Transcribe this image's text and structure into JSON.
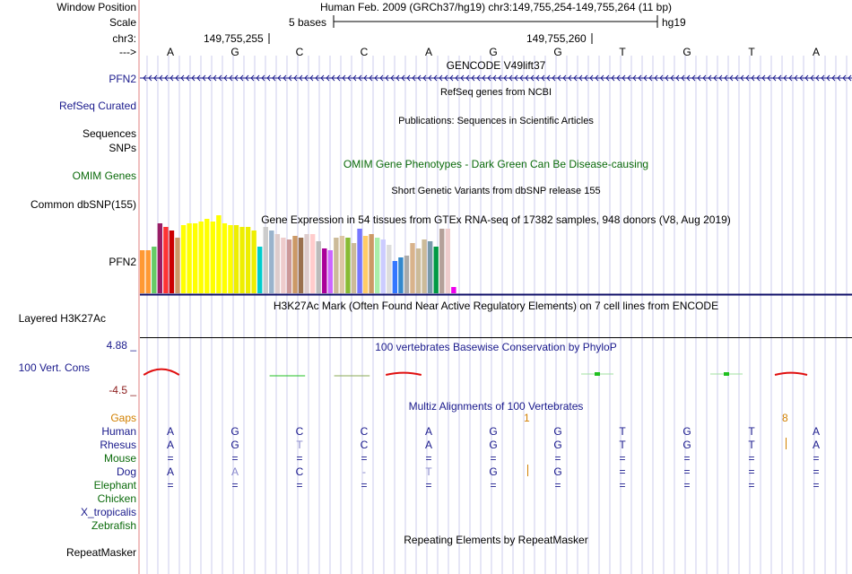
{
  "header": {
    "window_position_label": "Window Position",
    "scale_label": "Scale",
    "chrom_label": "chr3:",
    "strand_label": "--->",
    "position_text": "Human Feb. 2009 (GRCh37/hg19)   chr3:149,755,254-149,755,264 (11 bp)",
    "scale_text": "5 bases",
    "assembly": "hg19",
    "coord_1": "149,755,255",
    "coord_2": "149,755,260"
  },
  "bases": [
    "A",
    "G",
    "C",
    "C",
    "A",
    "G",
    "G",
    "T",
    "G",
    "T",
    "A"
  ],
  "tracks": {
    "gencode": {
      "title": "GENCODE V49lift37",
      "gene_label": "PFN2"
    },
    "refseq": {
      "title": "RefSeq genes from NCBI",
      "label": "RefSeq Curated"
    },
    "publications": {
      "title": "Publications: Sequences in Scientific Articles",
      "label_1": "Sequences",
      "label_2": "SNPs"
    },
    "omim": {
      "title": "OMIM Gene Phenotypes - Dark Green Can Be Disease-causing",
      "label": "OMIM Genes"
    },
    "dbsnp": {
      "title": "Short Genetic Variants from dbSNP release 155",
      "label": "Common dbSNP(155)"
    },
    "gtex": {
      "title": "Gene Expression in 54 tissues from GTEx RNA-seq of 17382 samples, 948 donors (V8, Aug 2019)",
      "label": "PFN2"
    },
    "h3k27ac": {
      "title": "H3K27Ac Mark (Often Found Near Active Regulatory Elements) on 7 cell lines from ENCODE",
      "label": "Layered H3K27Ac"
    },
    "phylop": {
      "title": "100 vertebrates Basewise Conservation by PhyloP",
      "label": "100 Vert. Cons",
      "max": "4.88 _",
      "min": "-4.5 _"
    },
    "multiz": {
      "title": "Multiz Alignments of 100 Vertebrates",
      "gaps_label": "Gaps",
      "gap_1": "1",
      "gap_2": "8",
      "species": [
        {
          "name": "Human",
          "bases": [
            "A",
            "G",
            "C",
            "C",
            "A",
            "G",
            "G",
            "T",
            "G",
            "T",
            "A"
          ]
        },
        {
          "name": "Rhesus",
          "bases": [
            "A",
            "G",
            "T",
            "C",
            "A",
            "G",
            "G",
            "T",
            "G",
            "T",
            "A"
          ]
        },
        {
          "name": "Mouse",
          "bases": [
            "=",
            "=",
            "=",
            "=",
            "=",
            "=",
            "=",
            "=",
            "=",
            "=",
            "="
          ]
        },
        {
          "name": "Dog",
          "bases": [
            "A",
            "A",
            "C",
            "-",
            "T",
            "G",
            "G",
            "=",
            "=",
            "=",
            "="
          ]
        },
        {
          "name": "Elephant",
          "bases": [
            "=",
            "=",
            "=",
            "=",
            "=",
            "=",
            "=",
            "=",
            "=",
            "=",
            "="
          ]
        },
        {
          "name": "Chicken",
          "bases": [
            "",
            "",
            "",
            "",
            "",
            "",
            "",
            "",
            "",
            "",
            ""
          ]
        },
        {
          "name": "X_tropicalis",
          "bases": [
            "",
            "",
            "",
            "",
            "",
            "",
            "",
            "",
            "",
            "",
            ""
          ]
        },
        {
          "name": "Zebrafish",
          "bases": [
            "",
            "",
            "",
            "",
            "",
            "",
            "",
            "",
            "",
            "",
            ""
          ]
        }
      ]
    },
    "repeatmasker": {
      "title": "Repeating Elements by RepeatMasker",
      "label": "RepeatMasker"
    }
  },
  "colors": {
    "navy": "#1a1a8c",
    "green": "#0a6a0a",
    "orange": "#d28000",
    "gene_arrow": "#1a1a8c",
    "conservation_red": "#e01010",
    "conservation_green": "#20c020"
  },
  "gtex_values": [
    0.48,
    0.48,
    0.52,
    0.78,
    0.74,
    0.7,
    0.62,
    0.76,
    0.78,
    0.78,
    0.8,
    0.83,
    0.8,
    0.87,
    0.78,
    0.76,
    0.76,
    0.74,
    0.74,
    0.7,
    0.52,
    0.74,
    0.7,
    0.66,
    0.62,
    0.6,
    0.64,
    0.62,
    0.66,
    0.66,
    0.58,
    0.5,
    0.48,
    0.62,
    0.64,
    0.62,
    0.56,
    0.72,
    0.64,
    0.66,
    0.62,
    0.6,
    0.54,
    0.36,
    0.4,
    0.42,
    0.56,
    0.5,
    0.6,
    0.58,
    0.52,
    0.72,
    0.72,
    0.07
  ],
  "gtex_colors": [
    "#ff9933",
    "#ff9933",
    "#66cc66",
    "#991e66",
    "#ff3333",
    "#cc0000",
    "#cc9966",
    "#ffff00",
    "#ffff00",
    "#ffff00",
    "#ffff00",
    "#ffff00",
    "#ffff00",
    "#ffff00",
    "#ffff00",
    "#ffff00",
    "#eeee00",
    "#eeee00",
    "#eeee00",
    "#eeee00",
    "#00cccc",
    "#cccccc",
    "#99b3cc",
    "#ddcccc",
    "#eecccc",
    "#cc9999",
    "#cc9966",
    "#99704d",
    "#ddcccc",
    "#ffcccc",
    "#bbbbbb",
    "#aa0099",
    "#cc66ff",
    "#ccbb99",
    "#ddc6a5",
    "#88bb33",
    "#ccbb99",
    "#7777ff",
    "#ffcc66",
    "#cc9966",
    "#aaeeaa",
    "#ccccff",
    "#dddddd",
    "#3377ff",
    "#3388cc",
    "#aaaaaa",
    "#d9b38c",
    "#ccbb99",
    "#ccbb99",
    "#7799aa",
    "#009944",
    "#b4a099",
    "#eecccc",
    "#ee00ee"
  ],
  "phylop_marks": [
    {
      "base": 0.25,
      "width": 0.55,
      "value": -1.6,
      "shape": "hump",
      "color": "red"
    },
    {
      "base": 2.2,
      "width": 0.55,
      "value": 0.2,
      "shape": "bar",
      "color": "green"
    },
    {
      "base": 3.2,
      "width": 0.55,
      "value": 0.25,
      "shape": "bar",
      "color": "olive"
    },
    {
      "base": 4.0,
      "width": 0.55,
      "value": -0.6,
      "shape": "hump",
      "color": "red"
    },
    {
      "base": 7.0,
      "width": 0.5,
      "value": 0.6,
      "shape": "tick",
      "color": "green"
    },
    {
      "base": 9.0,
      "width": 0.5,
      "value": 0.6,
      "shape": "tick",
      "color": "green"
    },
    {
      "base": 10.0,
      "width": 0.5,
      "value": -0.6,
      "shape": "hump",
      "color": "red"
    }
  ]
}
